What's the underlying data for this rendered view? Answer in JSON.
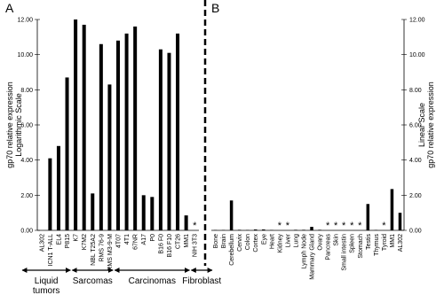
{
  "chart_data": [
    {
      "type": "bar",
      "title": "A",
      "ylabel": [
        "gp70 relative expression",
        "Logarithmic Scale"
      ],
      "color": "#000000",
      "categories": [
        "AL302",
        "ICN1 T-ALL",
        "EL4",
        "P815",
        "K7",
        "K7M2",
        "NBL T25A2",
        "RMS 76-9",
        "RMS M3-9-M",
        "4T07",
        "4T1",
        "67NR",
        "A17",
        "P0",
        "B16 F0",
        "B16 F10",
        "CT26",
        "MM1",
        "NIH 3T3"
      ],
      "values": [
        0,
        4.1,
        4.8,
        8.7,
        12.0,
        11.7,
        2.1,
        10.6,
        8.3,
        10.8,
        11.2,
        11.6,
        2.0,
        1.9,
        10.3,
        10.1,
        11.2,
        0.85,
        0
      ],
      "markers": [
        null,
        null,
        null,
        null,
        null,
        null,
        null,
        null,
        null,
        null,
        null,
        null,
        null,
        null,
        null,
        null,
        null,
        null,
        "*"
      ],
      "ylim": [
        0,
        12
      ],
      "yticks": [
        {
          "value": 0,
          "label": "0.00"
        },
        {
          "value": 2,
          "label": "2.00"
        },
        {
          "value": 4,
          "label": "4.00"
        },
        {
          "value": 6,
          "label": "6.00"
        },
        {
          "value": 8,
          "label": "8.00"
        },
        {
          "value": 10,
          "label": "10.00"
        },
        {
          "value": 12,
          "label": "12.00"
        }
      ],
      "axis_side": "left",
      "groups": [
        "Liquid tumors",
        "Sarcomas",
        "Carcinomas",
        "Fibroblast"
      ]
    },
    {
      "type": "bar",
      "title": "B",
      "ylabel": [
        "gp70 relative expression",
        "Linear Scale"
      ],
      "color": "#000000",
      "categories": [
        "Bone",
        "Brain",
        "Cerebellum",
        "Cervix",
        "Colon",
        "Cortex",
        "Eye",
        "Heart",
        "Kidney",
        "Liver",
        "Lung",
        "Lymph Node",
        "Mammary Gland",
        "Ovary",
        "Pancreas",
        "Skin",
        "Small intestin",
        "Spleen",
        "Stomach",
        "Testis",
        "Thymus",
        "Tyroid",
        "MM1",
        "AL302"
      ],
      "values": [
        0.02,
        0.02,
        1.7,
        0.03,
        0.02,
        0.05,
        0.05,
        0.02,
        0,
        0,
        0.03,
        0.03,
        0.2,
        0.03,
        0,
        0,
        0,
        0,
        0,
        1.5,
        0.02,
        0,
        2.35,
        1.0
      ],
      "markers": [
        null,
        null,
        null,
        null,
        null,
        null,
        null,
        null,
        "*",
        "*",
        null,
        null,
        null,
        null,
        "*",
        "*",
        "*",
        "*",
        "*",
        null,
        null,
        "*",
        null,
        null
      ],
      "ylim": [
        0,
        12
      ],
      "yticks": [
        {
          "value": 0,
          "label": "0.00"
        },
        {
          "value": 2,
          "label": "2.00"
        },
        {
          "value": 4,
          "label": "4.00"
        },
        {
          "value": 6,
          "label": "6.00"
        },
        {
          "value": 8,
          "label": "8.00"
        },
        {
          "value": 10,
          "label": "10.00"
        },
        {
          "value": 12,
          "label": "12.00"
        }
      ],
      "axis_side": "right"
    }
  ]
}
